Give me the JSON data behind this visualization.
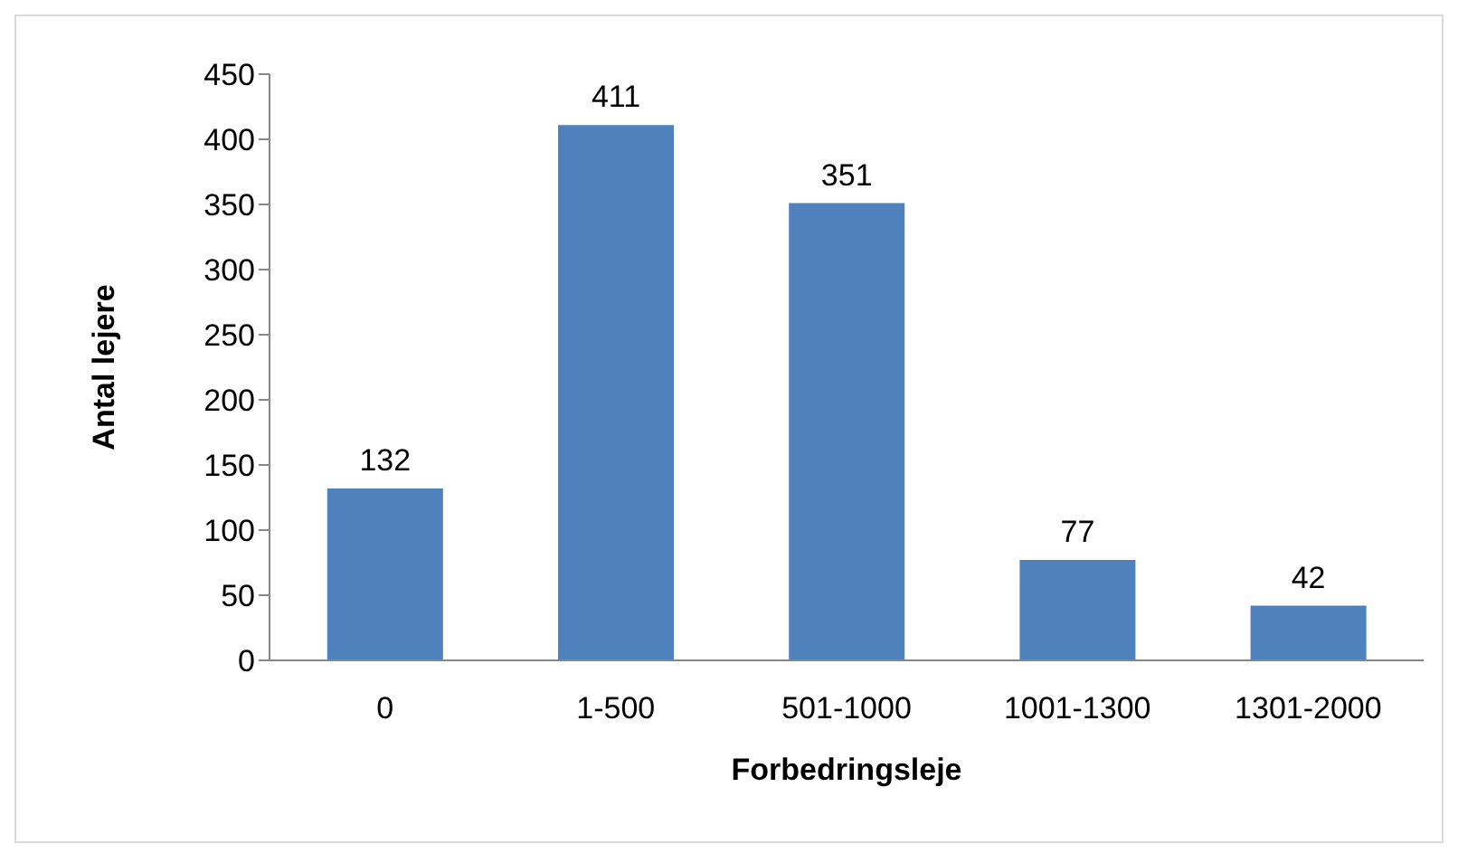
{
  "chart_data": {
    "type": "bar",
    "xlabel": "Forbedringsleje",
    "ylabel": "Antal lejere",
    "categories": [
      "0",
      "1-500",
      "501-1000",
      "1001-1300",
      "1301-2000"
    ],
    "values": [
      132,
      411,
      351,
      77,
      42
    ],
    "color": "#4f81bd",
    "ylim": [
      0,
      450
    ],
    "yticks": [
      0,
      50,
      100,
      150,
      200,
      250,
      300,
      350,
      400,
      450
    ],
    "grid": false,
    "legend": false,
    "data_labels": true
  }
}
